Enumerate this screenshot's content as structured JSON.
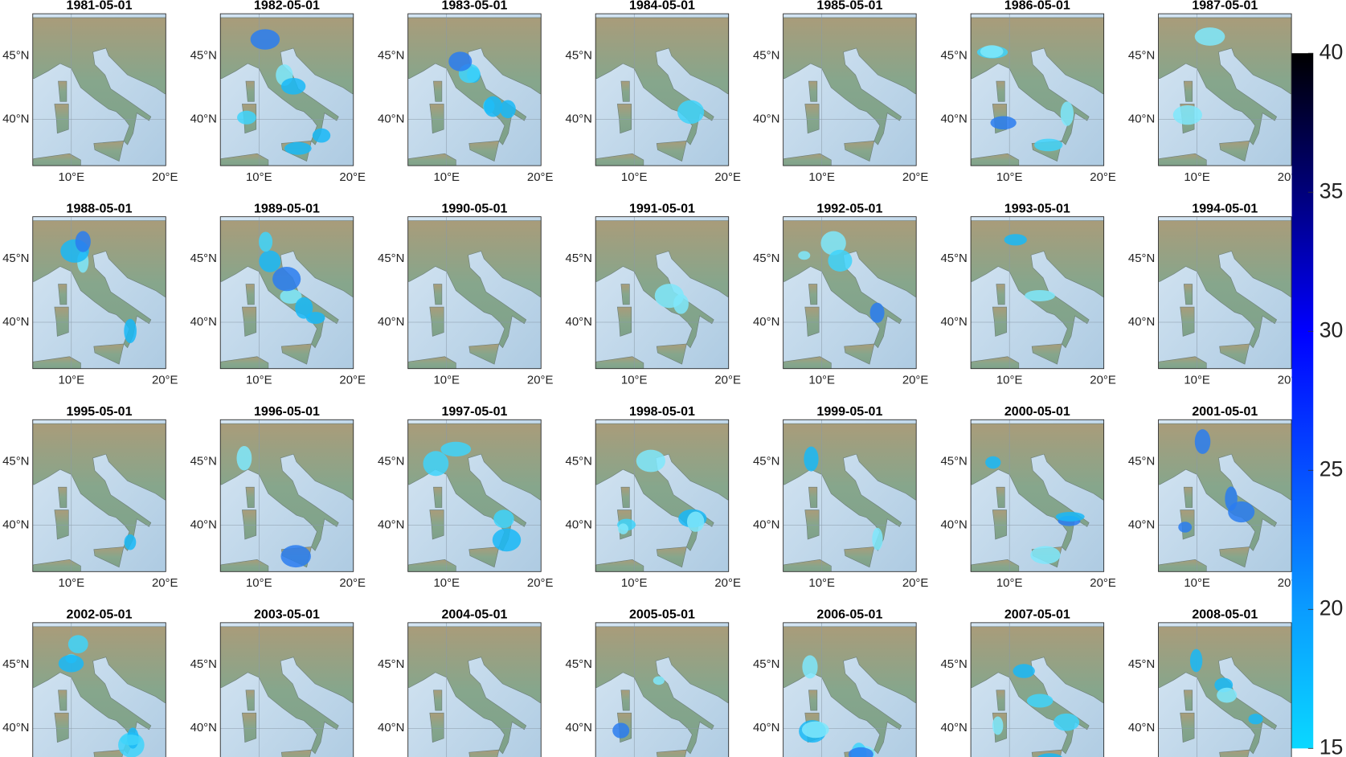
{
  "panels": {
    "titles": [
      "1981-05-01",
      "1982-05-01",
      "1983-05-01",
      "1984-05-01",
      "1985-05-01",
      "1986-05-01",
      "1987-05-01",
      "1988-05-01",
      "1989-05-01",
      "1990-05-01",
      "1991-05-01",
      "1992-05-01",
      "1993-05-01",
      "1994-05-01",
      "1995-05-01",
      "1996-05-01",
      "1997-05-01",
      "1998-05-01",
      "1999-05-01",
      "2000-05-01",
      "2001-05-01",
      "2002-05-01",
      "2003-05-01",
      "2004-05-01",
      "2005-05-01",
      "2006-05-01",
      "2007-05-01",
      "2008-05-01"
    ],
    "lat_labels": [
      "45°N",
      "40°N"
    ],
    "lon_labels": [
      "10°E",
      "20°E"
    ]
  },
  "colorbar": {
    "lim": [
      15,
      40
    ],
    "ticks": [
      15,
      20,
      25,
      30,
      35,
      40
    ]
  }
}
